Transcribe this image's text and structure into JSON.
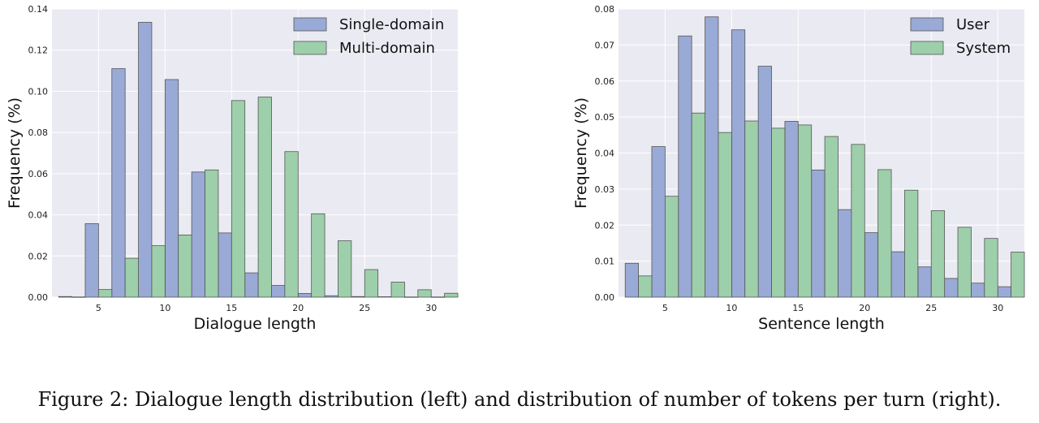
{
  "caption": "Figure 2: Dialogue length distribution (left) and distribution of number of tokens per turn (right).",
  "colors": {
    "plot_bg": "#eaeaf2",
    "grid": "#ffffff",
    "series_a": "#9aaad6",
    "series_b": "#9dcfaa",
    "edge": "#555555"
  },
  "chart_data": [
    {
      "type": "bar",
      "xlabel": "Dialogue length",
      "ylabel": "Frequency (%)",
      "xlim": [
        1.5,
        32
      ],
      "ylim": [
        0,
        0.14
      ],
      "xticks": [
        5,
        10,
        15,
        20,
        25,
        30
      ],
      "yticks": [
        0.0,
        0.02,
        0.04,
        0.06,
        0.08,
        0.1,
        0.12,
        0.14
      ],
      "ytick_labels": [
        "0.00",
        "0.02",
        "0.04",
        "0.06",
        "0.08",
        "0.10",
        "0.12",
        "0.14"
      ],
      "grid": true,
      "legend": "top-right",
      "x": [
        3,
        5,
        7,
        9,
        11,
        13,
        15,
        17,
        19,
        21,
        23,
        25,
        27,
        29,
        31
      ],
      "series": [
        {
          "name": "Single-domain",
          "values": [
            0.0003,
            0.0357,
            0.111,
            0.1335,
            0.1057,
            0.0608,
            0.0312,
            0.0118,
            0.0057,
            0.0018,
            0.0007,
            0.0003,
            0.0002,
            0.0001,
            0.0001
          ]
        },
        {
          "name": "Multi-domain",
          "values": [
            0.0001,
            0.0037,
            0.0189,
            0.025,
            0.0302,
            0.0618,
            0.0955,
            0.0972,
            0.0707,
            0.0405,
            0.0274,
            0.0134,
            0.0073,
            0.0036,
            0.0019
          ]
        }
      ]
    },
    {
      "type": "bar",
      "xlabel": "Sentence length",
      "ylabel": "Frequency (%)",
      "xlim": [
        1.5,
        32
      ],
      "ylim": [
        0,
        0.08
      ],
      "xticks": [
        5,
        10,
        15,
        20,
        25,
        30
      ],
      "yticks": [
        0.0,
        0.01,
        0.02,
        0.03,
        0.04,
        0.05,
        0.06,
        0.07,
        0.08
      ],
      "ytick_labels": [
        "0.00",
        "0.01",
        "0.02",
        "0.03",
        "0.04",
        "0.05",
        "0.06",
        "0.07",
        "0.08"
      ],
      "grid": true,
      "legend": "top-right",
      "x": [
        3,
        5,
        7,
        9,
        11,
        13,
        15,
        17,
        19,
        21,
        23,
        25,
        27,
        29,
        31
      ],
      "series": [
        {
          "name": "User",
          "values": [
            0.0094,
            0.0418,
            0.0725,
            0.0778,
            0.0742,
            0.0641,
            0.0488,
            0.0353,
            0.0243,
            0.0179,
            0.0126,
            0.0084,
            0.0052,
            0.0039,
            0.0029
          ]
        },
        {
          "name": "System",
          "values": [
            0.0059,
            0.028,
            0.0511,
            0.0457,
            0.0489,
            0.0469,
            0.0478,
            0.0446,
            0.0424,
            0.0354,
            0.0297,
            0.024,
            0.0194,
            0.0163,
            0.0125
          ]
        }
      ]
    }
  ]
}
